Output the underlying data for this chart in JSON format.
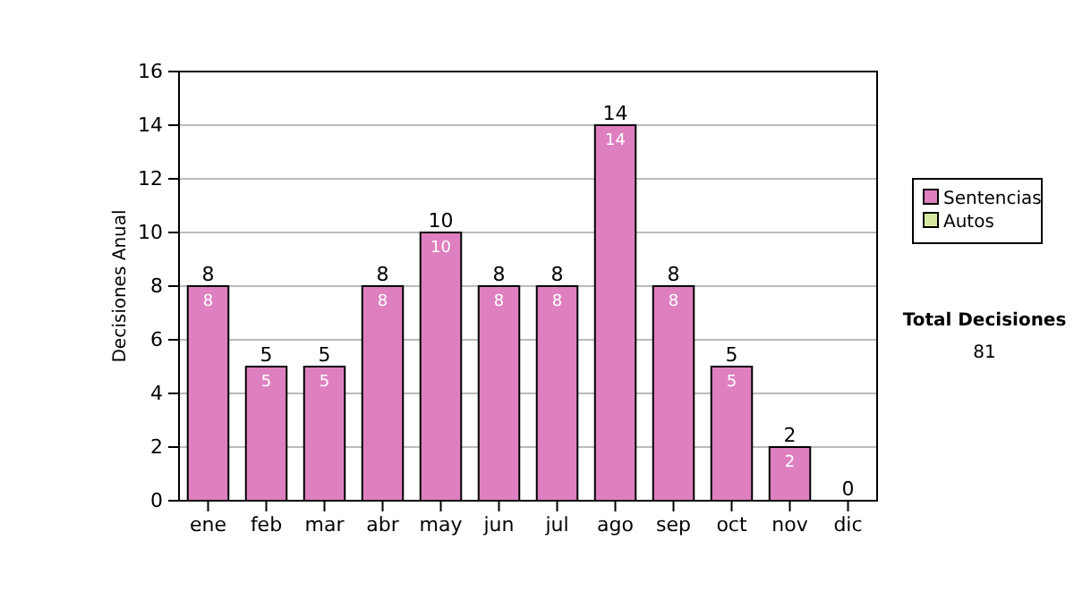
{
  "chart_data": {
    "type": "bar",
    "ylabel": "Decisiones Anual",
    "categories": [
      "ene",
      "feb",
      "mar",
      "abr",
      "may",
      "jun",
      "jul",
      "ago",
      "sep",
      "oct",
      "nov",
      "dic"
    ],
    "series": [
      {
        "name": "Sentencias",
        "color": "#de80c0",
        "values": [
          8,
          5,
          5,
          8,
          10,
          8,
          8,
          14,
          8,
          5,
          2,
          0
        ],
        "value_labels": [
          "8",
          "5",
          "5",
          "8",
          "10",
          "8",
          "8",
          "14",
          "8",
          "5",
          "2",
          null
        ]
      },
      {
        "name": "Autos",
        "color": "#d6e8a0",
        "values": [
          0,
          0,
          0,
          0,
          0,
          0,
          0,
          0,
          0,
          0,
          0,
          0
        ]
      }
    ],
    "stacked": true,
    "totals": [
      "8",
      "5",
      "5",
      "8",
      "10",
      "8",
      "8",
      "14",
      "8",
      "5",
      "2",
      "0"
    ],
    "ylim": [
      0,
      16
    ],
    "yticks": [
      0,
      2,
      4,
      6,
      8,
      10,
      12,
      14,
      16
    ],
    "grid": "y",
    "legend": "right",
    "annotations": [
      "Total Decisiones",
      "81"
    ]
  }
}
